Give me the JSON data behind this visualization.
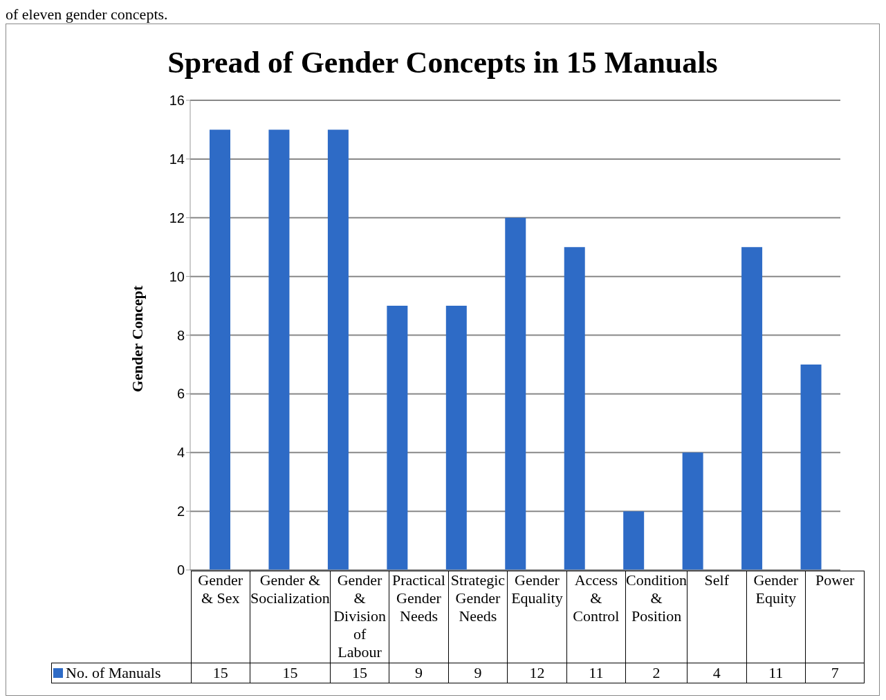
{
  "chart_data": {
    "type": "bar",
    "title": "Spread of Gender Concepts in 15 Manuals",
    "ylabel": "Gender Concept",
    "annotations": [
      "of eleven gender concepts."
    ],
    "categories": [
      "Gender & Sex",
      "Gender & Socialization",
      "Gender & Division of Labour",
      "Practical Gender Needs",
      "Strategic Gender Needs",
      "Gender Equality",
      "Access & Control",
      "Condition & Position",
      "Self",
      "Gender Equity",
      "Power"
    ],
    "series": [
      {
        "name": "No. of Manuals",
        "color": "#2e6bc6",
        "values": [
          15,
          15,
          15,
          9,
          9,
          12,
          11,
          2,
          4,
          11,
          7
        ]
      }
    ],
    "ylim": [
      0,
      16
    ],
    "yticks": [
      0,
      2,
      4,
      6,
      8,
      10,
      12,
      14,
      16
    ],
    "grid": "y",
    "legend": "bottom",
    "data_labels": true
  }
}
